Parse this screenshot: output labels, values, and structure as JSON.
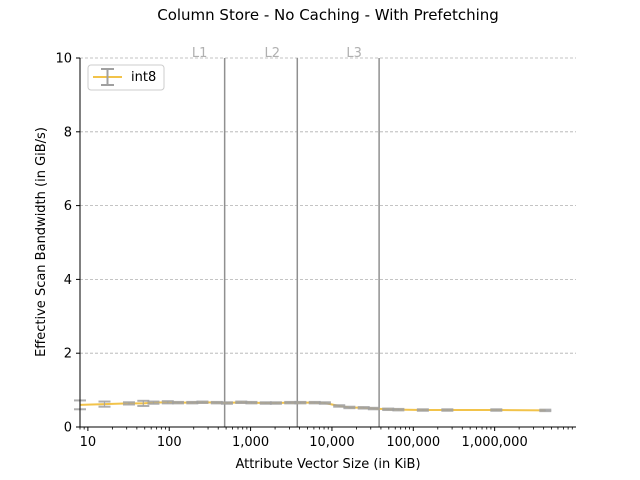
{
  "chart_data": {
    "type": "line",
    "title": "Column Store - No Caching - With Prefetching",
    "xlabel": "Attribute Vector Size (in KiB)",
    "ylabel": "Effective Scan Bandwidth (in GiB/s)",
    "x_scale": "log",
    "xlim": [
      8,
      10000000
    ],
    "ylim": [
      0,
      10
    ],
    "x_ticks": [
      {
        "value": 10,
        "label": "10"
      },
      {
        "value": 100,
        "label": "100"
      },
      {
        "value": 1000,
        "label": "1,000"
      },
      {
        "value": 10000,
        "label": "10,000"
      },
      {
        "value": 100000,
        "label": "100,000"
      },
      {
        "value": 1000000,
        "label": "1,000,000"
      }
    ],
    "y_ticks": [
      {
        "value": 0,
        "label": "0"
      },
      {
        "value": 2,
        "label": "2"
      },
      {
        "value": 4,
        "label": "4"
      },
      {
        "value": 6,
        "label": "6"
      },
      {
        "value": 8,
        "label": "8"
      },
      {
        "value": 10,
        "label": "10"
      }
    ],
    "grid": "horizontal-dashed",
    "legend_position": "top-left",
    "cache_lines": [
      {
        "label": "L1",
        "x": 480
      },
      {
        "label": "L2",
        "x": 3750
      },
      {
        "label": "L3",
        "x": 38000
      }
    ],
    "series": [
      {
        "name": "int8",
        "color": "#f2c34a",
        "errorbar_color": "#a0a0a0",
        "x": [
          8,
          16,
          32,
          48,
          64,
          96,
          128,
          192,
          256,
          384,
          512,
          768,
          1024,
          1536,
          2048,
          3072,
          4096,
          6144,
          8192,
          12288,
          16384,
          24576,
          32768,
          49152,
          65536,
          131072,
          262144,
          1048576,
          4194304
        ],
        "y": [
          0.6,
          0.62,
          0.64,
          0.64,
          0.66,
          0.67,
          0.66,
          0.66,
          0.67,
          0.66,
          0.65,
          0.67,
          0.66,
          0.65,
          0.65,
          0.66,
          0.66,
          0.66,
          0.65,
          0.57,
          0.53,
          0.52,
          0.5,
          0.48,
          0.47,
          0.46,
          0.46,
          0.46,
          0.45
        ],
        "err": [
          0.12,
          0.07,
          0.03,
          0.07,
          0.03,
          0.03,
          0.02,
          0.02,
          0.02,
          0.02,
          0.02,
          0.02,
          0.02,
          0.02,
          0.02,
          0.02,
          0.02,
          0.02,
          0.02,
          0.02,
          0.02,
          0.02,
          0.02,
          0.02,
          0.02,
          0.02,
          0.02,
          0.02,
          0.02
        ]
      }
    ]
  }
}
